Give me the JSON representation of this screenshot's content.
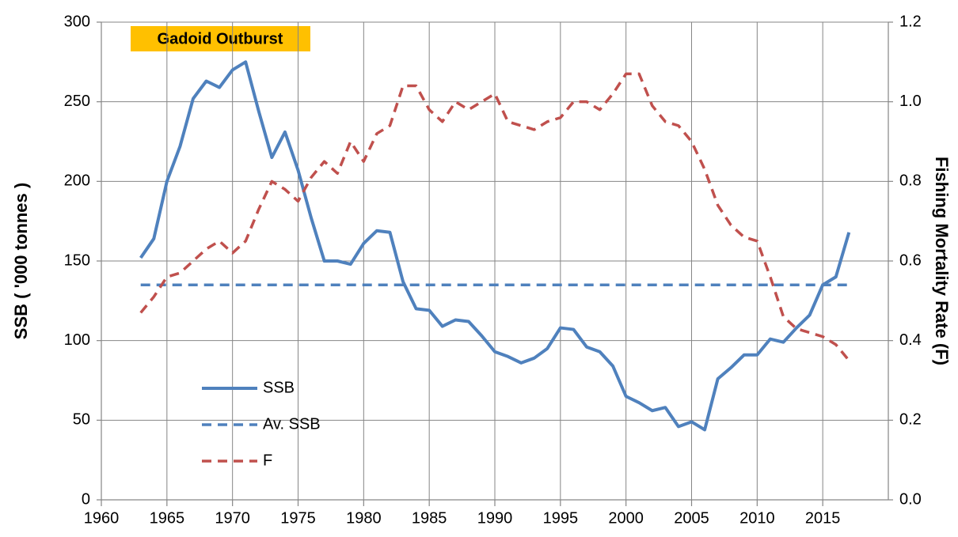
{
  "chart_data": {
    "type": "line",
    "annotation": "Gadoid Outburst",
    "ylabel": "SSB ( '000 tonnes )",
    "y2label": "Fishing Mortality Rate (F)",
    "x": [
      1963,
      1964,
      1965,
      1966,
      1967,
      1968,
      1969,
      1970,
      1971,
      1972,
      1973,
      1974,
      1975,
      1976,
      1977,
      1978,
      1979,
      1980,
      1981,
      1982,
      1983,
      1984,
      1985,
      1986,
      1987,
      1988,
      1989,
      1990,
      1991,
      1992,
      1993,
      1994,
      1995,
      1996,
      1997,
      1998,
      1999,
      2000,
      2001,
      2002,
      2003,
      2004,
      2005,
      2006,
      2007,
      2008,
      2009,
      2010,
      2011,
      2012,
      2013,
      2014,
      2015,
      2016,
      2017
    ],
    "series": [
      {
        "name": "SSB",
        "color": "#4f81bd",
        "line_style": "solid",
        "values": [
          152,
          164,
          200,
          222,
          252,
          263,
          259,
          270,
          275,
          244,
          215,
          231,
          207,
          177,
          150,
          150,
          148,
          161,
          169,
          168,
          137,
          120,
          119,
          109,
          113,
          112,
          103,
          93,
          90,
          86,
          89,
          95,
          108,
          107,
          96,
          93,
          84,
          65,
          61,
          56,
          58,
          46,
          49,
          44,
          76,
          83,
          91,
          91,
          101,
          99,
          108,
          116,
          135,
          140,
          168
        ]
      },
      {
        "name": "Av. SSB",
        "color": "#4f81bd",
        "line_style": "dashed",
        "values": [
          135,
          135,
          135,
          135,
          135,
          135,
          135,
          135,
          135,
          135,
          135,
          135,
          135,
          135,
          135,
          135,
          135,
          135,
          135,
          135,
          135,
          135,
          135,
          135,
          135,
          135,
          135,
          135,
          135,
          135,
          135,
          135,
          135,
          135,
          135,
          135,
          135,
          135,
          135,
          135,
          135,
          135,
          135,
          135,
          135,
          135,
          135,
          135,
          135,
          135,
          135,
          135,
          135,
          135,
          135
        ]
      },
      {
        "name": "F",
        "color": "#c0504d",
        "line_style": "dashed",
        "axis": "y2",
        "values": [
          0.47,
          0.51,
          0.56,
          0.57,
          0.6,
          0.63,
          0.65,
          0.62,
          0.65,
          0.73,
          0.8,
          0.78,
          0.75,
          0.81,
          0.85,
          0.82,
          0.9,
          0.85,
          0.92,
          0.94,
          1.04,
          1.04,
          0.98,
          0.95,
          1.0,
          0.98,
          1.0,
          1.02,
          0.95,
          0.94,
          0.93,
          0.95,
          0.96,
          1.0,
          1.0,
          0.98,
          1.02,
          1.07,
          1.07,
          0.99,
          0.95,
          0.94,
          0.9,
          0.83,
          0.74,
          0.69,
          0.66,
          0.65,
          0.56,
          0.46,
          0.43,
          0.42,
          0.41,
          0.39,
          0.35
        ]
      }
    ],
    "xlim": [
      1960,
      2020
    ],
    "xticks": [
      1960,
      1965,
      1970,
      1975,
      1980,
      1985,
      1990,
      1995,
      2000,
      2005,
      2010,
      2015
    ],
    "ylim": [
      0,
      300
    ],
    "yticks": [
      0,
      50,
      100,
      150,
      200,
      250,
      300
    ],
    "y2lim": [
      0,
      1.2
    ],
    "y2ticks": [
      {
        "value": 0,
        "label": "0.0"
      },
      0.2,
      0.4,
      0.6,
      0.8,
      {
        "value": 1,
        "label": "1.0"
      },
      1.2
    ],
    "grid": true
  }
}
